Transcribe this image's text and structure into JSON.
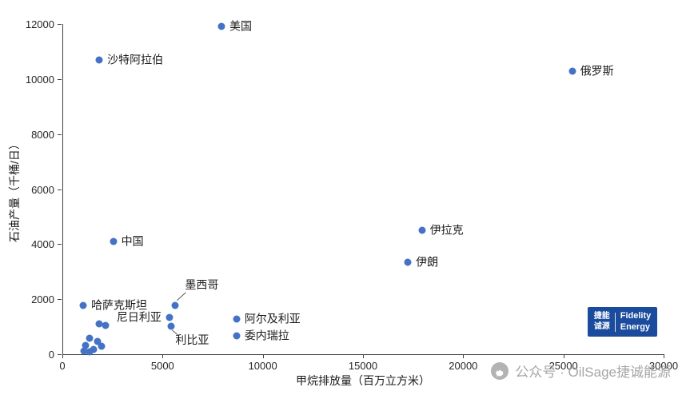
{
  "chart_data": {
    "type": "scatter",
    "title": "",
    "xlabel": "甲烷排放量（百万立方米）",
    "ylabel": "石油产量（千桶/日）",
    "xlim": [
      0,
      30000
    ],
    "ylim": [
      0,
      12000
    ],
    "x_ticks": [
      0,
      5000,
      10000,
      15000,
      20000,
      25000,
      30000
    ],
    "y_ticks": [
      0,
      2000,
      4000,
      6000,
      8000,
      10000,
      12000
    ],
    "grid": false,
    "legend": "none",
    "point_color": "#4472C4",
    "points": [
      {
        "x": 7900,
        "y": 11900,
        "label": "美国",
        "label_pos": "right"
      },
      {
        "x": 1800,
        "y": 10700,
        "label": "沙特阿拉伯",
        "label_pos": "right"
      },
      {
        "x": 25400,
        "y": 10300,
        "label": "俄罗斯",
        "label_pos": "right"
      },
      {
        "x": 2500,
        "y": 4100,
        "label": "中国",
        "label_pos": "right"
      },
      {
        "x": 17900,
        "y": 4500,
        "label": "伊拉克",
        "label_pos": "right"
      },
      {
        "x": 17200,
        "y": 3350,
        "label": "伊朗",
        "label_pos": "right"
      },
      {
        "x": 1000,
        "y": 1780,
        "label": "哈萨克斯坦",
        "label_pos": "right"
      },
      {
        "x": 5600,
        "y": 1780,
        "label": "墨西哥",
        "label_pos": "above-leader"
      },
      {
        "x": 5300,
        "y": 1340,
        "label": "尼日利亚",
        "label_pos": "left"
      },
      {
        "x": 5400,
        "y": 1020,
        "label": "利比亚",
        "label_pos": "below-leader"
      },
      {
        "x": 8650,
        "y": 1280,
        "label": "阿尔及利亚",
        "label_pos": "right"
      },
      {
        "x": 8650,
        "y": 670,
        "label": "委内瑞拉",
        "label_pos": "right"
      },
      {
        "x": 1800,
        "y": 1100,
        "label": ""
      },
      {
        "x": 2100,
        "y": 1060,
        "label": ""
      },
      {
        "x": 1300,
        "y": 580,
        "label": ""
      },
      {
        "x": 1700,
        "y": 470,
        "label": ""
      },
      {
        "x": 1100,
        "y": 320,
        "label": ""
      },
      {
        "x": 1900,
        "y": 290,
        "label": ""
      },
      {
        "x": 1500,
        "y": 175,
        "label": ""
      },
      {
        "x": 1050,
        "y": 115,
        "label": ""
      },
      {
        "x": 1300,
        "y": 90,
        "label": ""
      }
    ]
  },
  "logo": {
    "bg": "#1A4B9D",
    "cn_line1": "捷能",
    "cn_line2": "诚源",
    "en_line1": "Fidelity",
    "en_line2": "Energy"
  },
  "watermark": {
    "text": "公众号 · OilSage捷诚能源"
  }
}
